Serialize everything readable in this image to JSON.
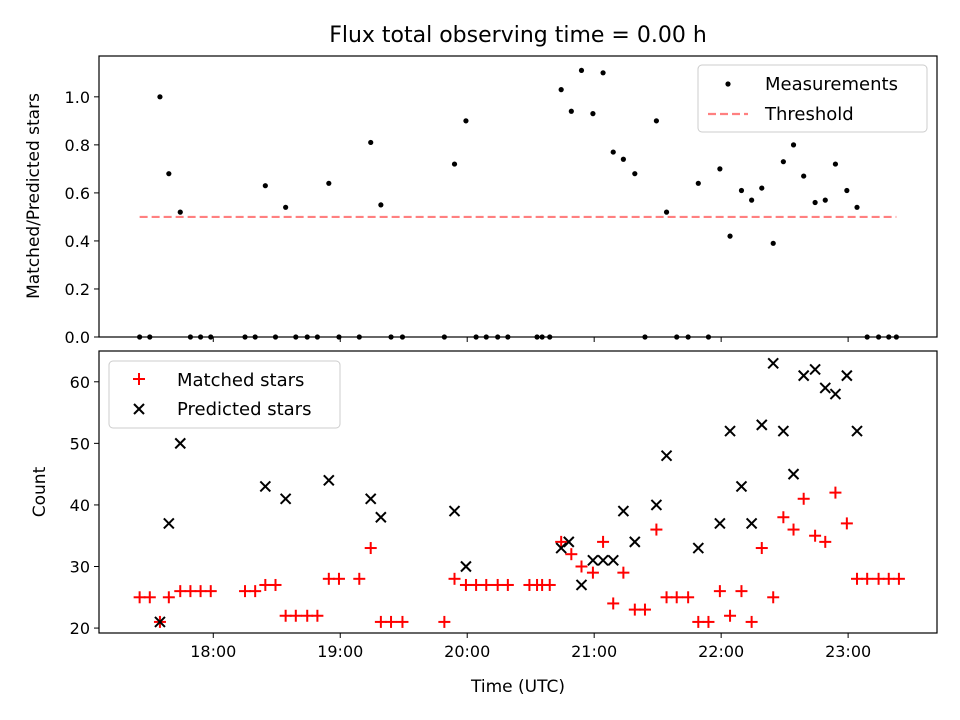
{
  "chart_data": {
    "title": "Flux total observing time = 0.00 h",
    "xlabel": "Time (UTC)",
    "x_unit": "hours UTC (decimal)",
    "xlim": [
      17.1,
      23.7
    ],
    "xticks": [
      {
        "value": 18,
        "label": "18:00"
      },
      {
        "value": 19,
        "label": "19:00"
      },
      {
        "value": 20,
        "label": "20:00"
      },
      {
        "value": 21,
        "label": "21:00"
      },
      {
        "value": 22,
        "label": "22:00"
      },
      {
        "value": 23,
        "label": "23:00"
      }
    ],
    "colors": {
      "matched": "#ff0000",
      "predicted": "#000000",
      "measurements": "#000000",
      "threshold": "#ff8080"
    },
    "top": {
      "type": "scatter",
      "ylabel": "Matched/Predicted stars",
      "ylim": [
        0,
        1.17
      ],
      "yticks": [
        {
          "value": 0.0,
          "label": "0.0"
        },
        {
          "value": 0.2,
          "label": "0.2"
        },
        {
          "value": 0.4,
          "label": "0.4"
        },
        {
          "value": 0.6,
          "label": "0.6"
        },
        {
          "value": 0.8,
          "label": "0.8"
        },
        {
          "value": 1.0,
          "label": "1.0"
        }
      ],
      "legend": {
        "position": "top-right",
        "measurements_label": "Measurements",
        "threshold_label": "Threshold"
      },
      "threshold": {
        "value": 0.5,
        "x_start": 17.42,
        "x_end": 23.38
      },
      "measurements": {
        "x": [
          17.42,
          17.5,
          17.58,
          17.65,
          17.74,
          17.82,
          17.9,
          17.98,
          18.25,
          18.33,
          18.41,
          18.49,
          18.57,
          18.65,
          18.74,
          18.82,
          18.91,
          18.99,
          19.15,
          19.24,
          19.32,
          19.4,
          19.49,
          19.82,
          19.9,
          19.99,
          20.07,
          20.15,
          20.24,
          20.32,
          20.55,
          20.59,
          20.65,
          20.74,
          20.82,
          20.9,
          20.99,
          21.07,
          21.15,
          21.23,
          21.32,
          21.4,
          21.49,
          21.57,
          21.65,
          21.74,
          21.82,
          21.9,
          21.99,
          22.07,
          22.16,
          22.24,
          22.32,
          22.41,
          22.49,
          22.57,
          22.65,
          22.74,
          22.82,
          22.9,
          22.99,
          23.07,
          23.15,
          23.24,
          23.32,
          23.38
        ],
        "y": [
          0,
          0,
          1.0,
          0.68,
          0.52,
          0,
          0,
          0,
          0,
          0,
          0.63,
          0,
          0.54,
          0,
          0,
          0,
          0.64,
          0,
          0,
          0.81,
          0.55,
          0,
          0,
          0,
          0.72,
          0.9,
          0,
          0,
          0,
          0,
          0,
          0,
          0,
          1.03,
          0.94,
          1.11,
          0.93,
          1.1,
          0.77,
          0.74,
          0.68,
          0,
          0.9,
          0.52,
          0,
          0,
          0.64,
          0,
          0.7,
          0.42,
          0.61,
          0.57,
          0.62,
          0.39,
          0.73,
          0.8,
          0.67,
          0.56,
          0.57,
          0.72,
          0.61,
          0.54,
          0,
          0,
          0,
          0
        ]
      }
    },
    "bottom": {
      "type": "scatter",
      "ylabel": "Count",
      "ylim": [
        19.2,
        65
      ],
      "yticks": [
        {
          "value": 20,
          "label": "20"
        },
        {
          "value": 30,
          "label": "30"
        },
        {
          "value": 40,
          "label": "40"
        },
        {
          "value": 50,
          "label": "50"
        },
        {
          "value": 60,
          "label": "60"
        }
      ],
      "legend": {
        "position": "top-left",
        "matched_label": "Matched stars",
        "predicted_label": "Predicted stars"
      },
      "matched": {
        "x": [
          17.42,
          17.5,
          17.58,
          17.65,
          17.74,
          17.82,
          17.9,
          17.98,
          18.25,
          18.33,
          18.41,
          18.49,
          18.57,
          18.65,
          18.74,
          18.82,
          18.91,
          18.99,
          19.15,
          19.24,
          19.32,
          19.4,
          19.49,
          19.82,
          19.9,
          19.99,
          20.07,
          20.15,
          20.24,
          20.32,
          20.49,
          20.55,
          20.59,
          20.65,
          20.74,
          20.82,
          20.9,
          20.99,
          21.07,
          21.15,
          21.23,
          21.32,
          21.4,
          21.49,
          21.57,
          21.65,
          21.74,
          21.82,
          21.9,
          21.99,
          22.07,
          22.16,
          22.24,
          22.32,
          22.41,
          22.49,
          22.57,
          22.65,
          22.74,
          22.82,
          22.9,
          22.99,
          23.07,
          23.15,
          23.24,
          23.32,
          23.4
        ],
        "y": [
          25,
          25,
          21,
          25,
          26,
          26,
          26,
          26,
          26,
          26,
          27,
          27,
          22,
          22,
          22,
          22,
          28,
          28,
          28,
          33,
          21,
          21,
          21,
          21,
          28,
          27,
          27,
          27,
          27,
          27,
          27,
          27,
          27,
          27,
          34,
          32,
          30,
          29,
          34,
          24,
          29,
          23,
          23,
          36,
          25,
          25,
          25,
          21,
          21,
          26,
          22,
          26,
          21,
          33,
          25,
          38,
          36,
          41,
          35,
          34,
          42,
          37,
          28,
          28,
          28,
          28,
          28
        ]
      },
      "predicted": {
        "x": [
          17.58,
          17.65,
          17.74,
          18.41,
          18.57,
          18.91,
          19.24,
          19.32,
          19.9,
          19.99,
          20.74,
          20.8,
          20.9,
          20.99,
          21.07,
          21.15,
          21.23,
          21.32,
          21.49,
          21.57,
          21.82,
          21.99,
          22.07,
          22.16,
          22.24,
          22.32,
          22.41,
          22.49,
          22.57,
          22.65,
          22.74,
          22.82,
          22.9,
          22.99,
          23.07
        ],
        "y": [
          21,
          37,
          50,
          43,
          41,
          44,
          41,
          38,
          39,
          30,
          33,
          34,
          27,
          31,
          31,
          31,
          39,
          34,
          40,
          48,
          33,
          37,
          52,
          43,
          37,
          53,
          63,
          52,
          45,
          61,
          62,
          59,
          58,
          61,
          52
        ]
      }
    }
  }
}
